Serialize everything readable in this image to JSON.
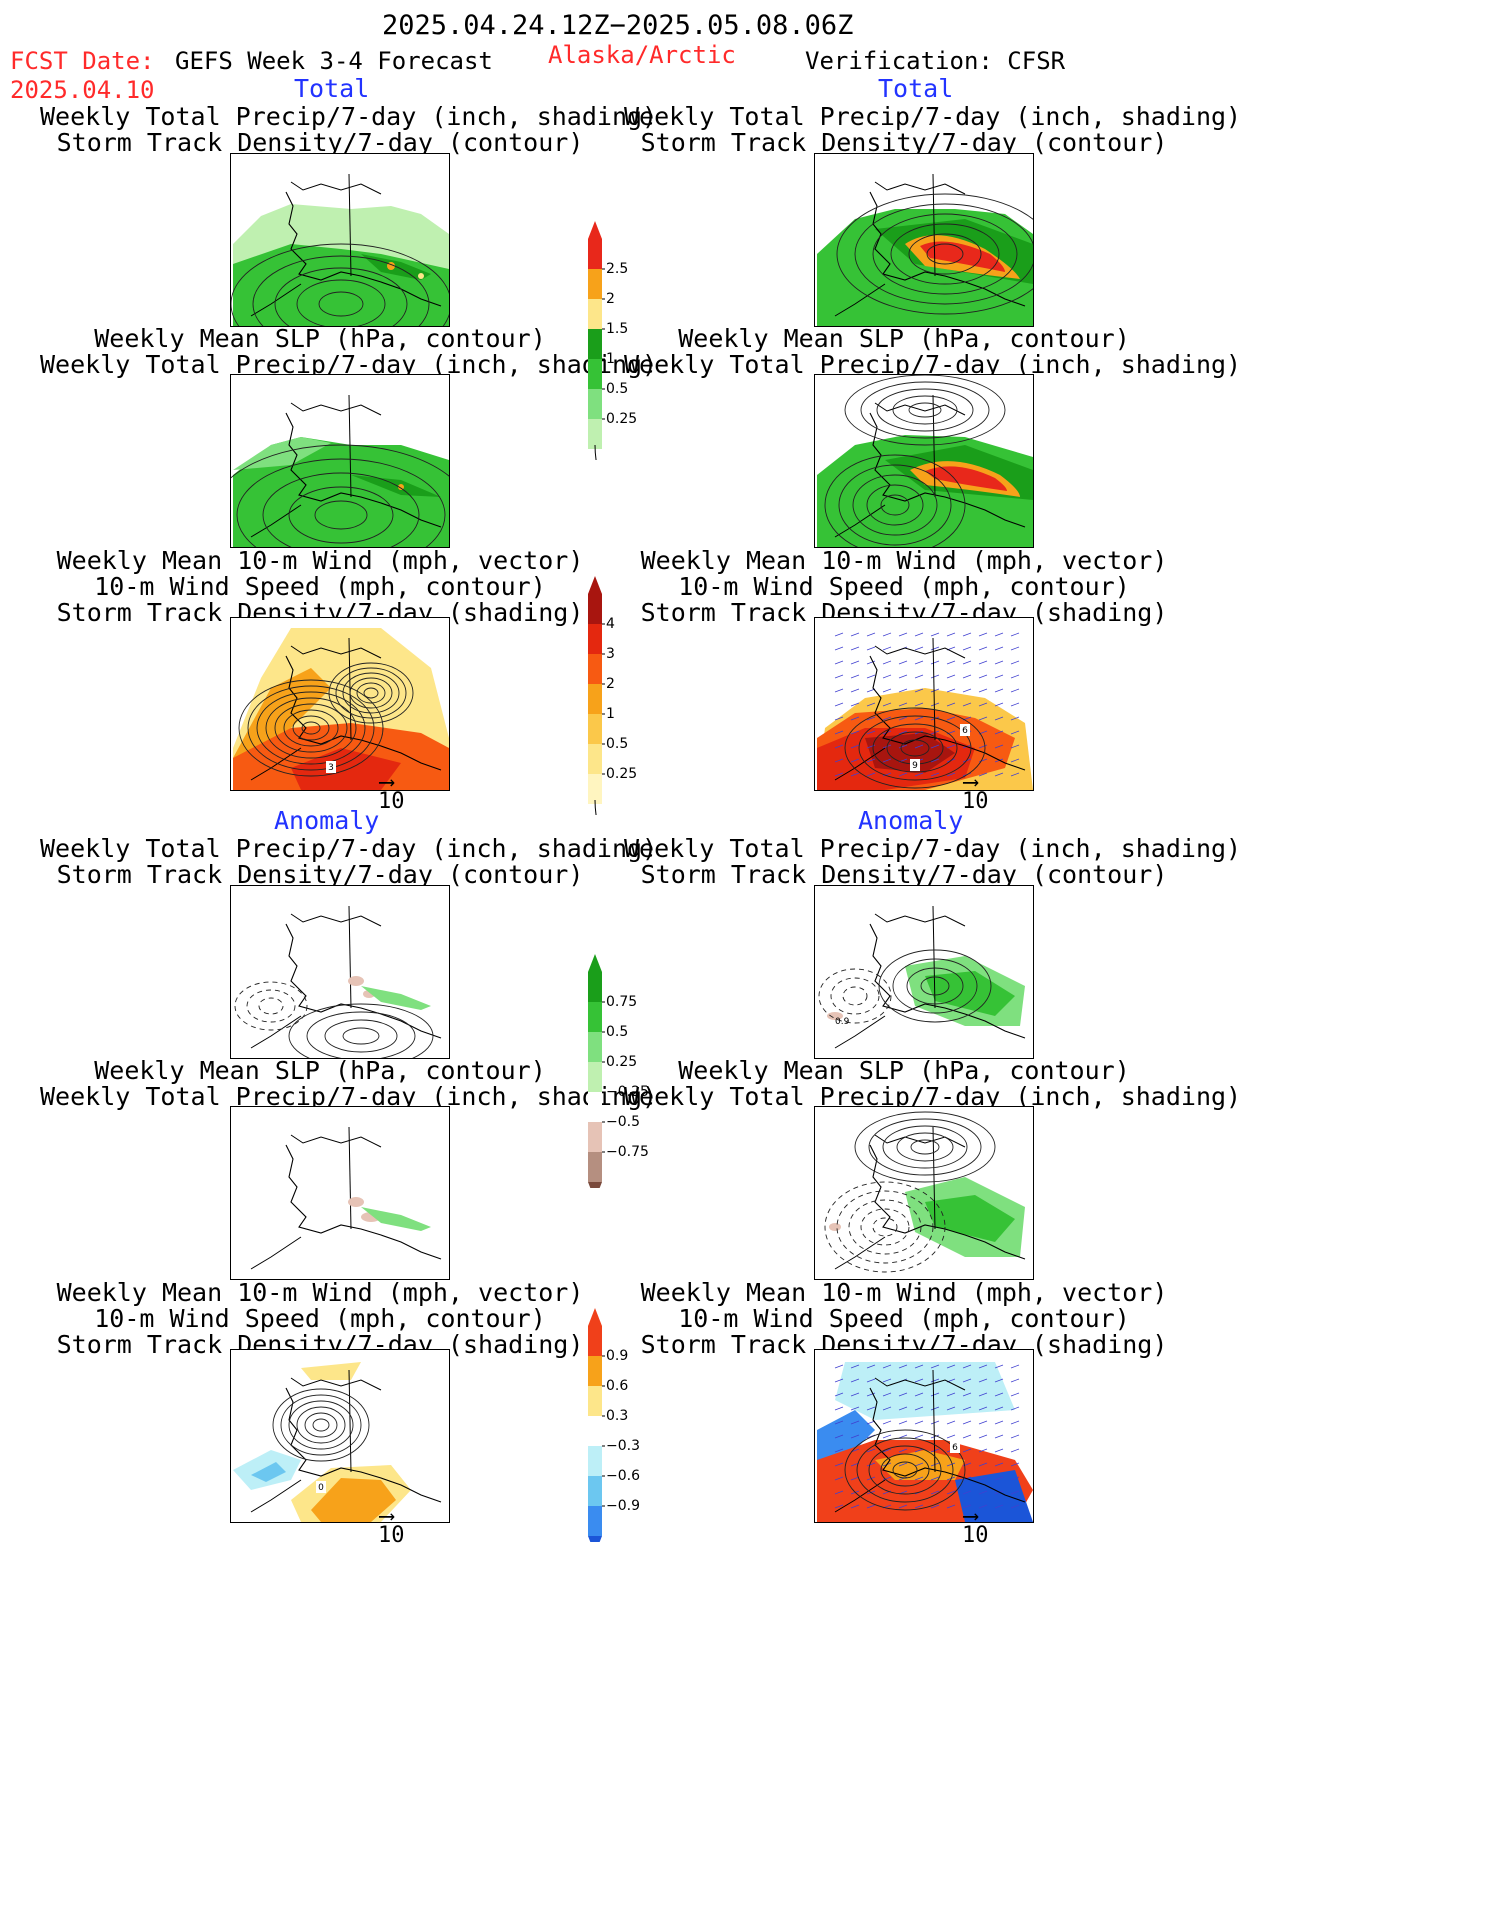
{
  "header": {
    "date_range": "2025.04.24.12Z−2025.05.08.06Z",
    "fcst_label": "FCST Date:",
    "fcst_date": "2025.04.10",
    "product": "GEFS Week 3-4 Forecast",
    "region": "Alaska/Arctic",
    "verification": "Verification: CFSR"
  },
  "sections": {
    "total_left": "Total",
    "total_right": "Total",
    "anomaly_left": "Anomaly",
    "anomaly_right": "Anomaly"
  },
  "panels": {
    "precip_track": [
      "Weekly Total Precip/7-day (inch, shading)",
      "Storm Track Density/7-day (contour)"
    ],
    "slp_precip": [
      "Weekly Mean SLP (hPa, contour)",
      "Weekly Total Precip/7-day (inch, shading)"
    ],
    "wind": [
      "Weekly Mean 10-m Wind (mph, vector)",
      "10-m Wind Speed (mph, contour)",
      "Storm Track Density/7-day (shading)"
    ]
  },
  "vector_scale": "10",
  "colorbars": {
    "precip_total": {
      "ticks": [
        "2.5",
        "2",
        "1.5",
        "1",
        "0.5",
        "0.25"
      ],
      "colors": [
        "#e8281b",
        "#f7a21a",
        "#fde68a",
        "#1a9e1a",
        "#36c236",
        "#7fe07f",
        "#bff0b0"
      ]
    },
    "track_total": {
      "ticks": [
        "4",
        "3",
        "2",
        "1",
        "0.5",
        "0.25"
      ],
      "colors": [
        "#a8150f",
        "#e4280f",
        "#f75a12",
        "#f7a21a",
        "#fbc84a",
        "#fde68a",
        "#fff5c0"
      ]
    },
    "precip_anom": {
      "ticks": [
        "0.75",
        "0.5",
        "0.25",
        "−0.25",
        "−0.5",
        "−0.75"
      ],
      "colors": [
        "#1a9e1a",
        "#36c236",
        "#7fe07f",
        "#bff0b0",
        "#ffffff",
        "#e6c3b6",
        "#b58f80",
        "#7a4a3c"
      ]
    },
    "track_anom": {
      "ticks": [
        "0.9",
        "0.6",
        "0.3",
        "−0.3",
        "−0.6",
        "−0.9"
      ],
      "colors": [
        "#f0401a",
        "#f7a21a",
        "#fde68a",
        "#ffffff",
        "#bdeff7",
        "#6cc7f0",
        "#3a8cf0",
        "#1b55d8"
      ]
    }
  },
  "map_labels": {
    "w_left_3": "3",
    "w_right_6": "6",
    "w_right_9": "9",
    "a_right_09": "0.9",
    "aw_left_0": "0",
    "aw_right_6": "6"
  }
}
